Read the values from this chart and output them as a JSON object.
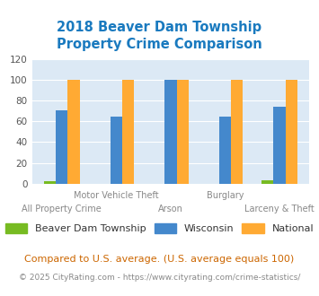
{
  "title": "2018 Beaver Dam Township\nProperty Crime Comparison",
  "title_color": "#1a7abf",
  "categories": [
    "All Property Crime",
    "Motor Vehicle Theft",
    "Arson",
    "Burglary",
    "Larceny & Theft"
  ],
  "x_labels_top": [
    "",
    "Motor Vehicle Theft",
    "",
    "Burglary",
    ""
  ],
  "x_labels_bottom": [
    "All Property Crime",
    "",
    "Arson",
    "",
    "Larceny & Theft"
  ],
  "township_values": [
    2,
    0,
    0,
    0,
    3
  ],
  "wisconsin_values": [
    71,
    65,
    100,
    65,
    74
  ],
  "national_values": [
    100,
    100,
    100,
    100,
    100
  ],
  "township_color": "#77bb22",
  "wisconsin_color": "#4488cc",
  "national_color": "#ffaa33",
  "ylim": [
    0,
    120
  ],
  "yticks": [
    0,
    20,
    40,
    60,
    80,
    100,
    120
  ],
  "bg_color": "#dce9f5",
  "legend_labels": [
    "Beaver Dam Township",
    "Wisconsin",
    "National"
  ],
  "footnote1": "Compared to U.S. average. (U.S. average equals 100)",
  "footnote2": "© 2025 CityRating.com - https://www.cityrating.com/crime-statistics/",
  "footnote1_color": "#cc6600",
  "footnote2_color": "#888888",
  "url_color": "#4488cc"
}
